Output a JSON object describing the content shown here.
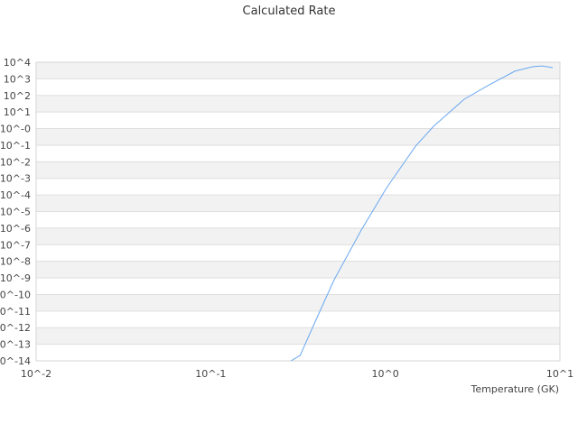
{
  "chart_data": {
    "type": "line",
    "title": "Calculated Rate",
    "xlabel": "Temperature (GK)",
    "ylabel": "",
    "xscale": "log",
    "yscale": "log",
    "xlim": [
      0.01,
      10
    ],
    "ylim": [
      1e-14,
      10000.0
    ],
    "x_tick_labels": [
      "10^-2",
      "10^-1",
      "10^0",
      "10^1"
    ],
    "y_tick_labels": [
      "10^4",
      "10^3",
      "10^2",
      "10^1",
      "10^-0",
      "10^-1",
      "10^-2",
      "10^-3",
      "10^-4",
      "10^-5",
      "10^-6",
      "10^-7",
      "10^-8",
      "10^-9",
      "10^-10",
      "10^-11",
      "10^-12",
      "10^-13",
      "10^-14"
    ],
    "grid": "horizontal alternating bands",
    "legend": "none",
    "series": [
      {
        "color": "#6aa8f0",
        "x": [
          0.288,
          0.325,
          0.4,
          0.51,
          0.73,
          1.02,
          1.49,
          1.89,
          2.83,
          3.86,
          5.52,
          7.0,
          7.9,
          9.1
        ],
        "y": [
          1e-14,
          2.1e-14,
          2.8e-12,
          7.9e-10,
          7.9e-07,
          0.00028,
          0.087,
          1.38,
          59,
          390,
          2900,
          5400,
          6000,
          4700
        ]
      }
    ]
  }
}
